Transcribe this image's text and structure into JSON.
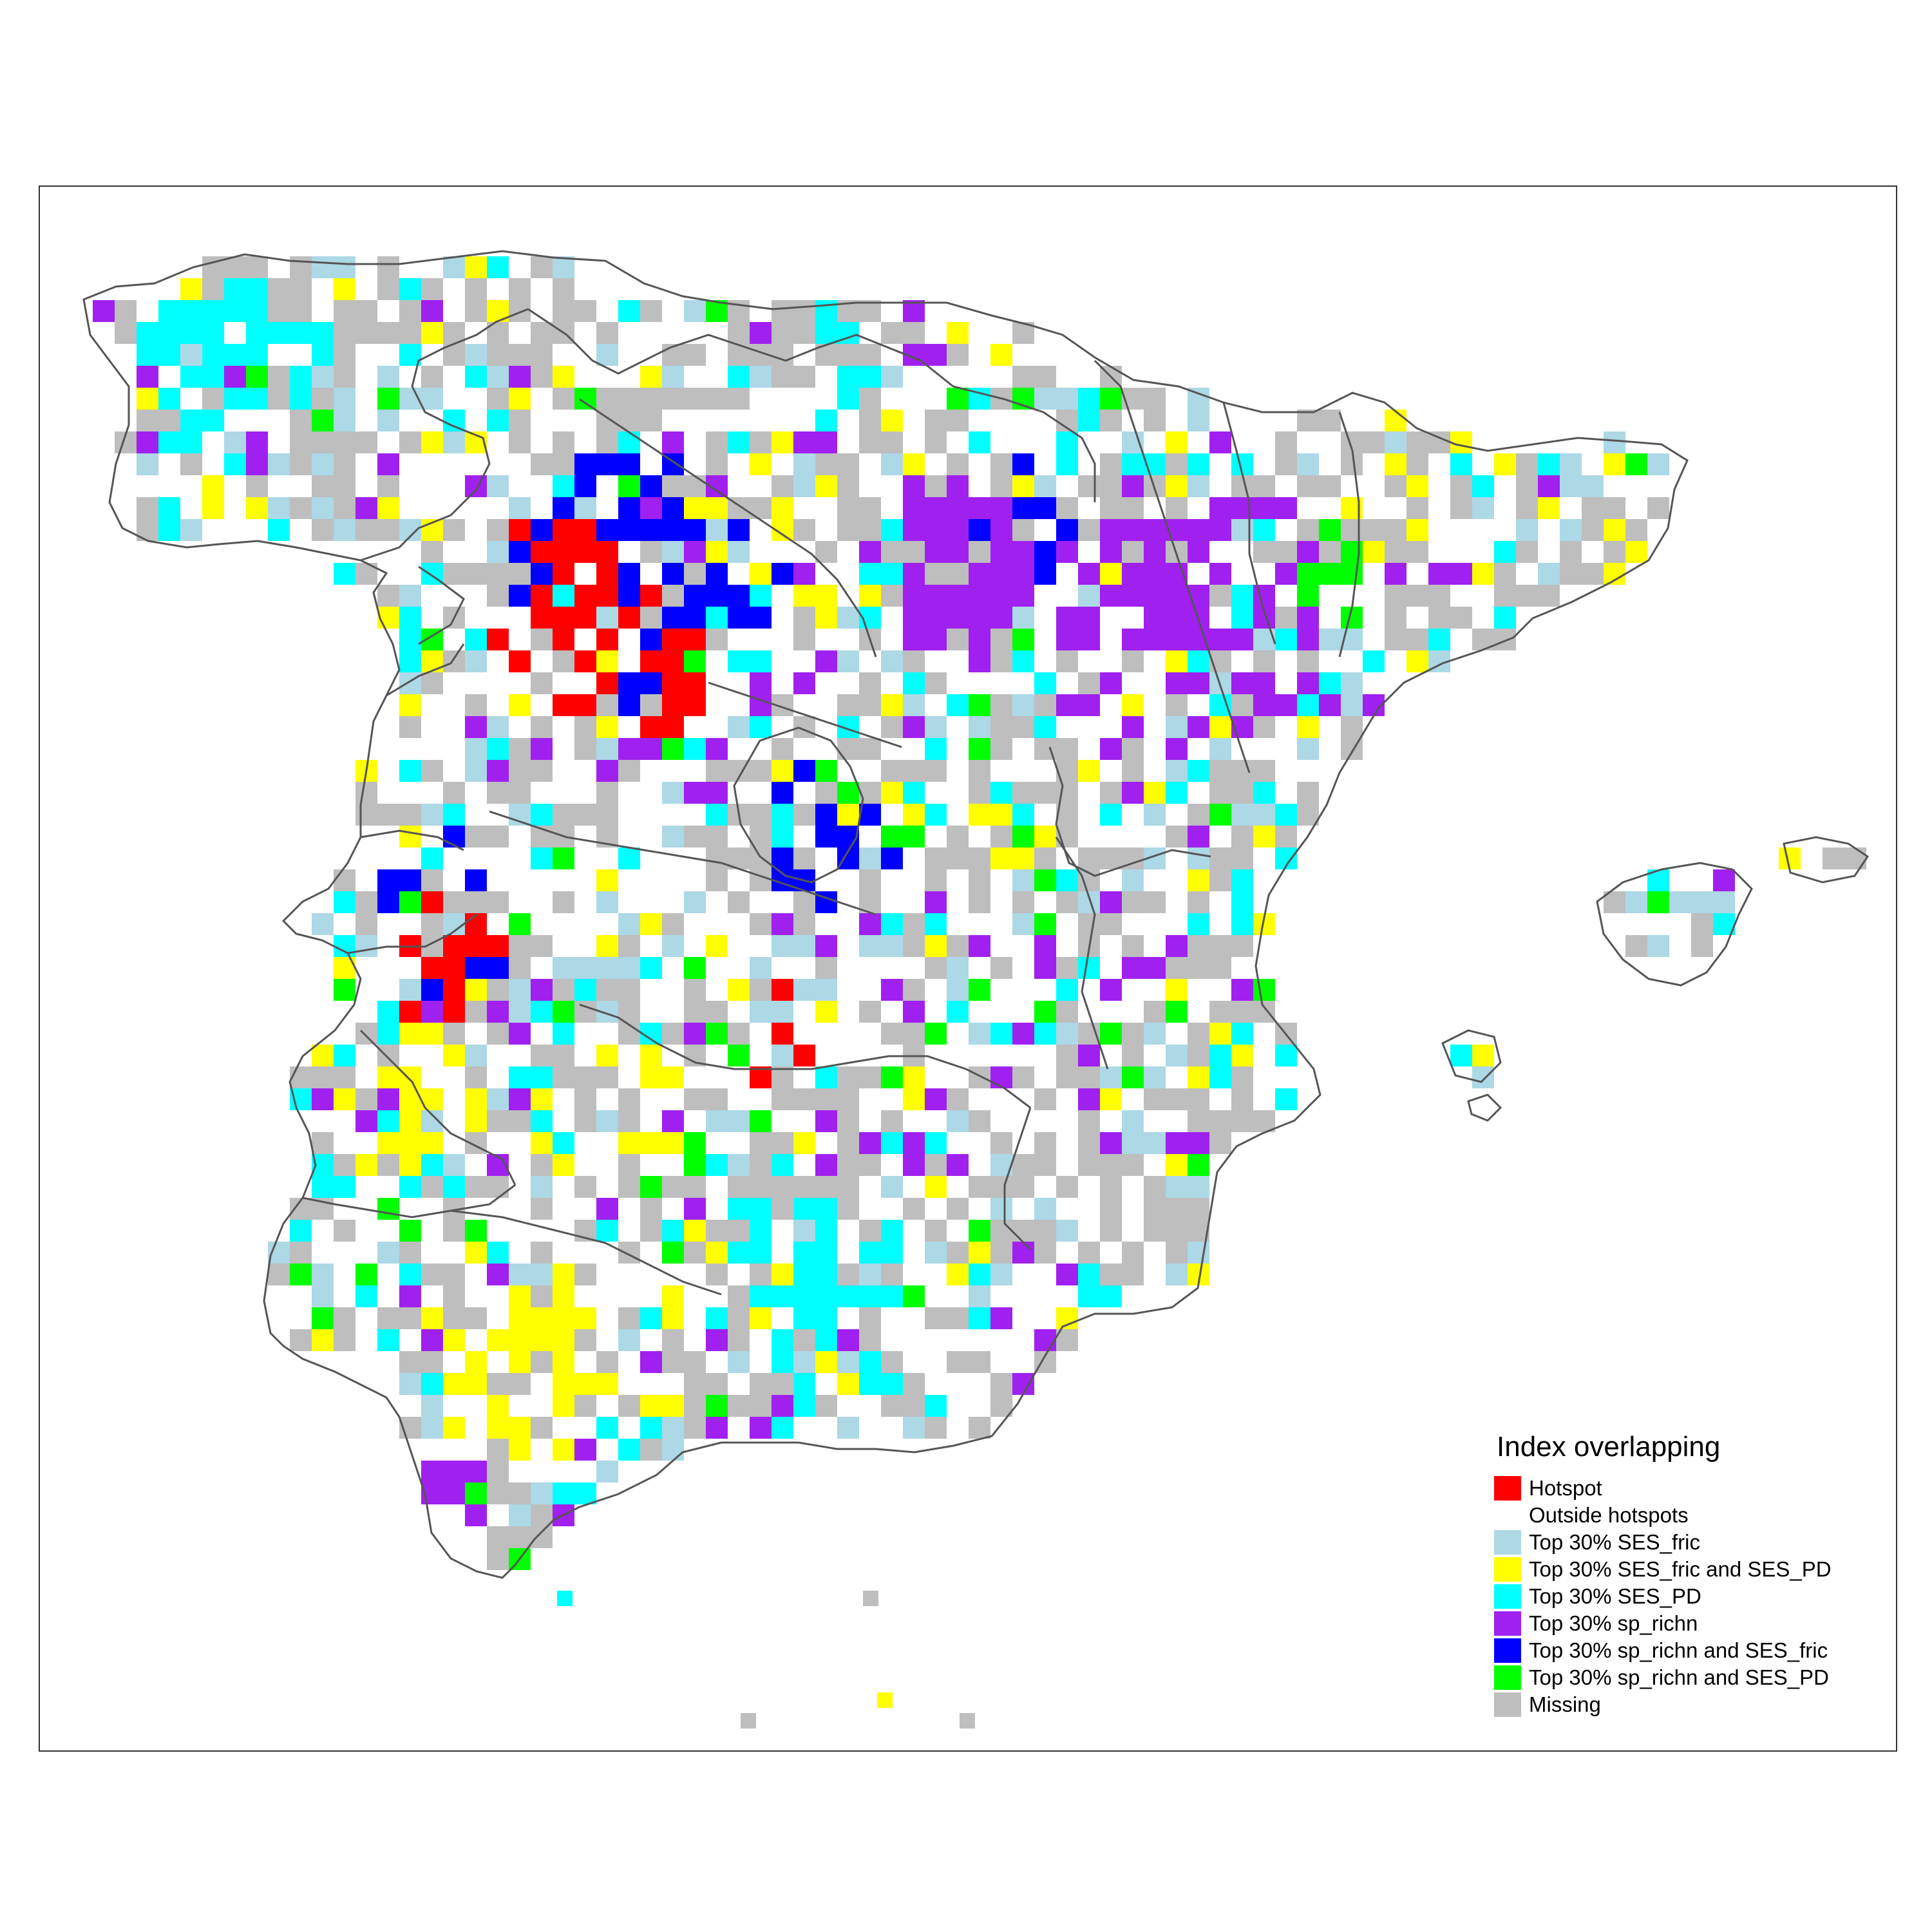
{
  "map": {
    "outline_color": "#555555",
    "grid_cols": 86,
    "grid_rows": 65
  },
  "legend": {
    "title": "Index overlapping",
    "items": [
      {
        "key": "hotspot",
        "label": "Hotspot",
        "color": "#ff0000"
      },
      {
        "key": "outside",
        "label": "Outside hotspots",
        "color": "#ffffff"
      },
      {
        "key": "ses_fric",
        "label": "Top 30% SES_fric",
        "color": "#add8e6"
      },
      {
        "key": "fric_pd",
        "label": "Top 30% SES_fric and SES_PD",
        "color": "#ffff00"
      },
      {
        "key": "ses_pd",
        "label": "Top 30% SES_PD",
        "color": "#00ffff"
      },
      {
        "key": "sp_richn",
        "label": "Top 30% sp_richn",
        "color": "#a020f0"
      },
      {
        "key": "richn_fric",
        "label": "Top 30% sp_richn and SES_fric",
        "color": "#0000ff"
      },
      {
        "key": "richn_pd",
        "label": "Top 30% sp_richn and SES_PD",
        "color": "#00ff00"
      },
      {
        "key": "missing",
        "label": "Missing",
        "color": "#bebebe"
      }
    ]
  }
}
